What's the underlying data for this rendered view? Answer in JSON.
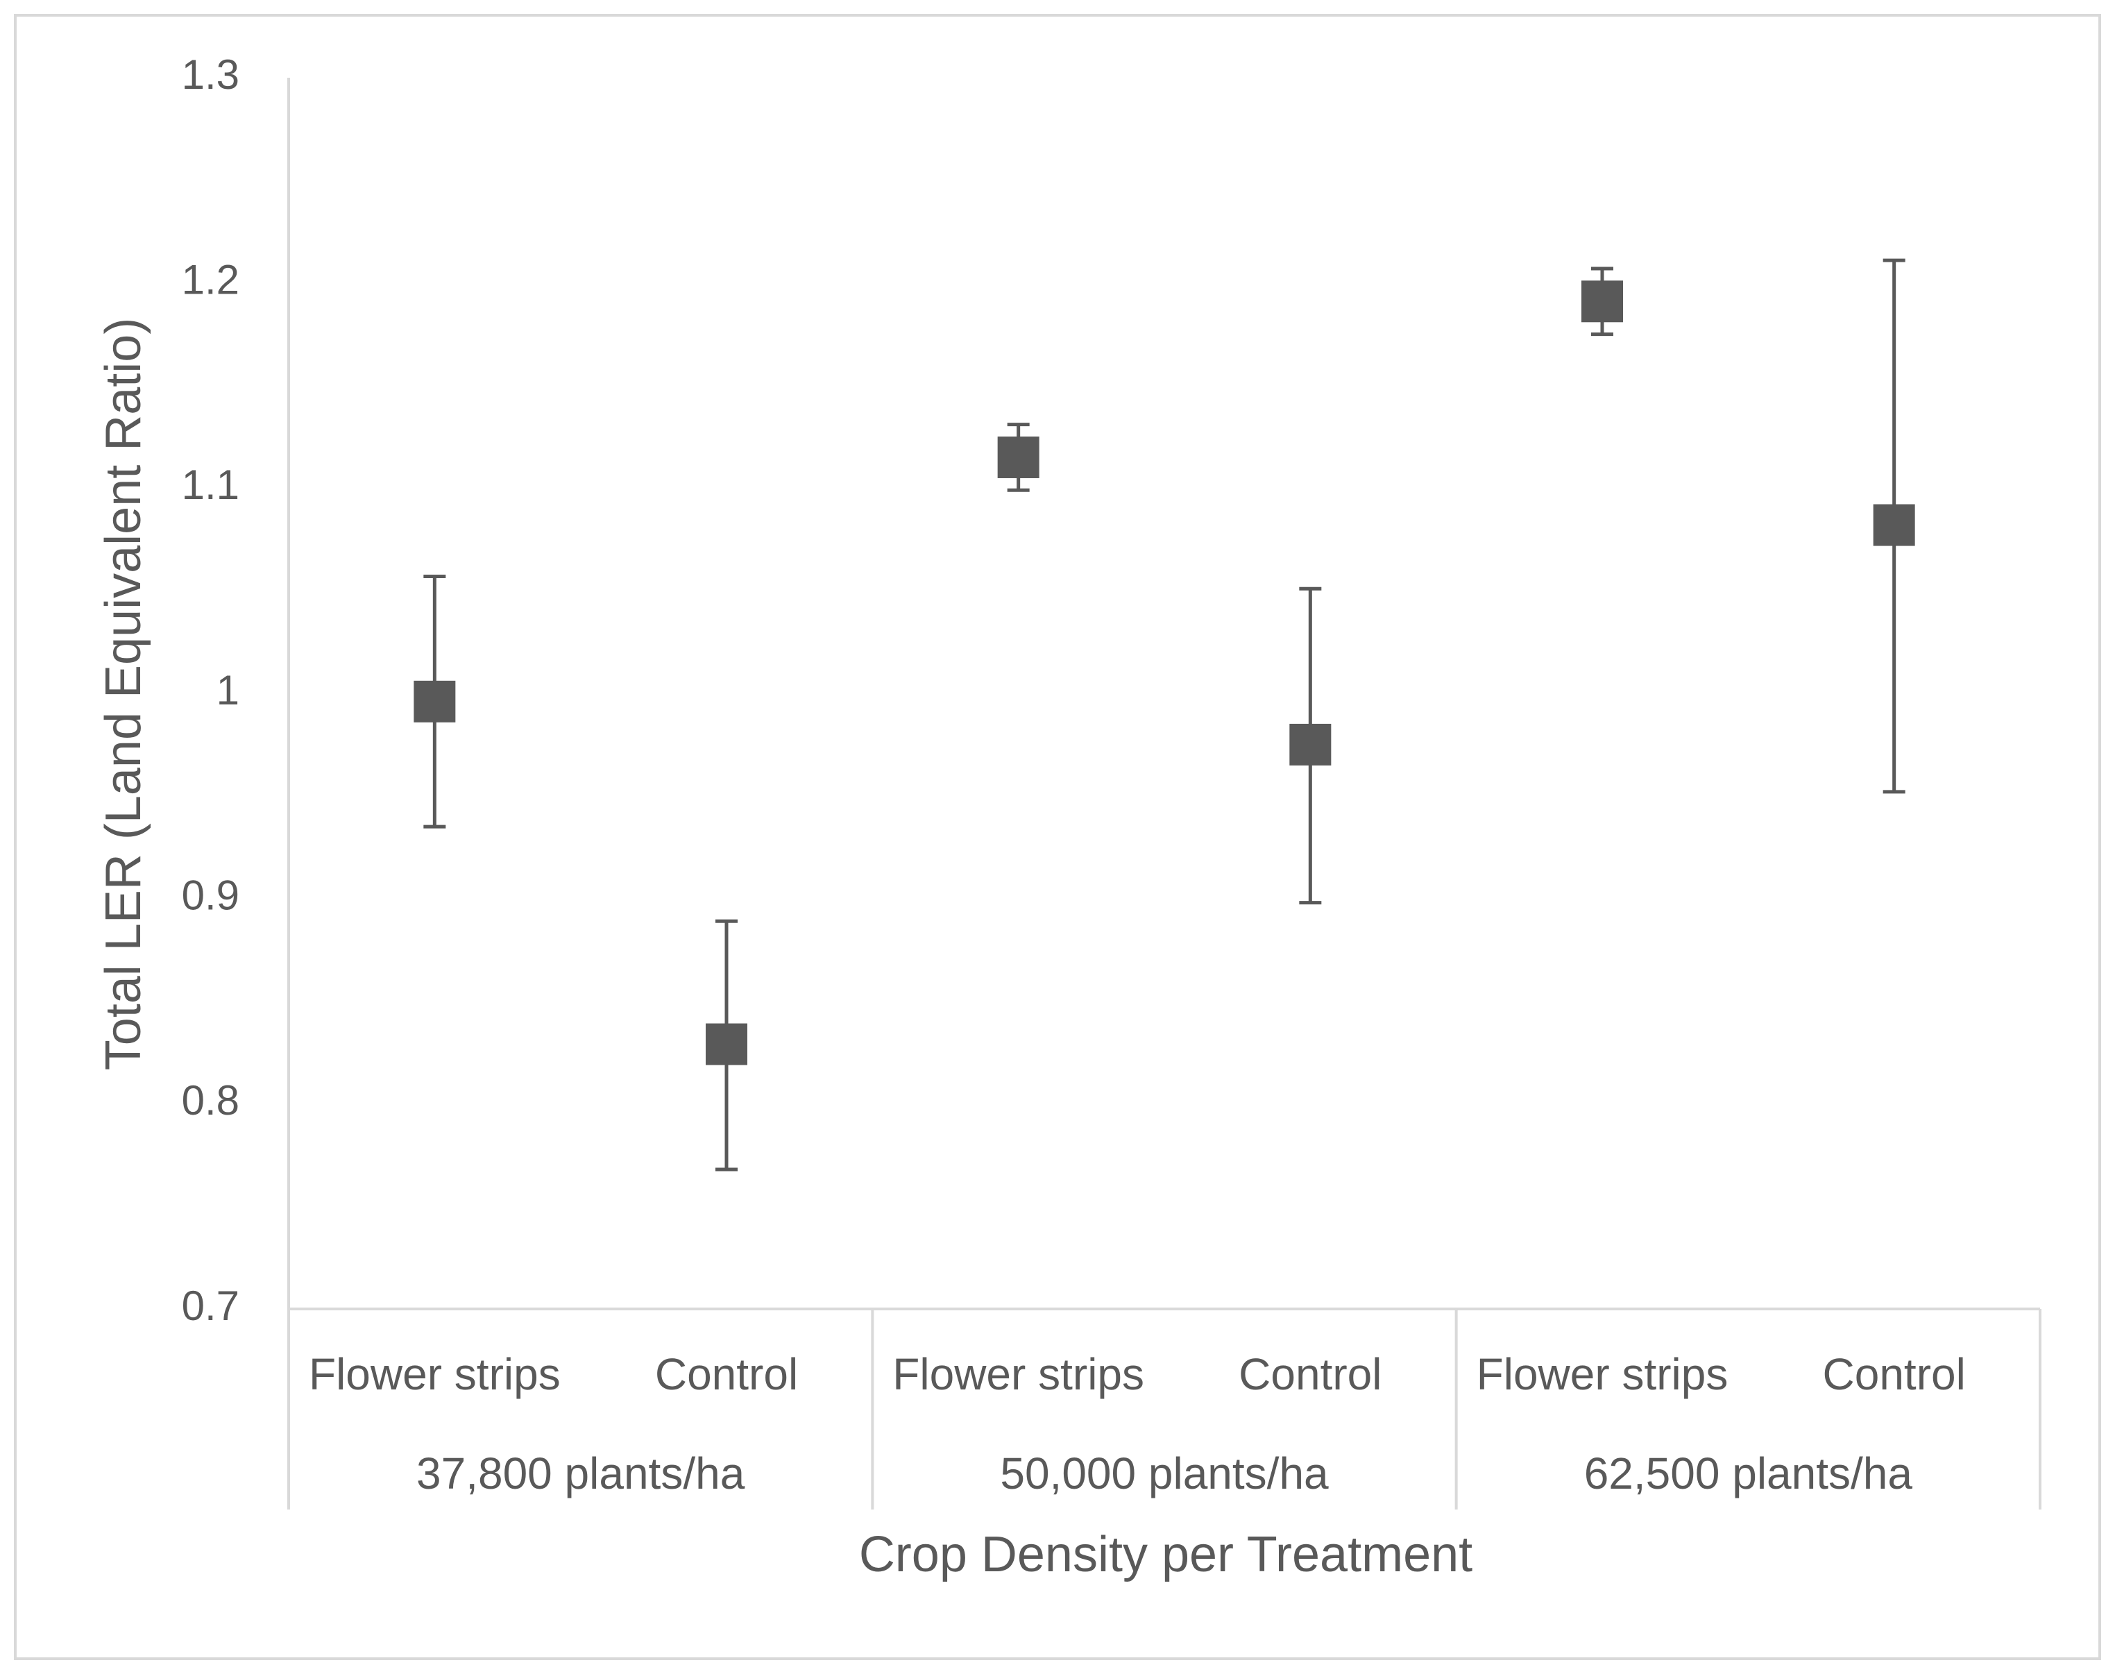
{
  "chart_data": {
    "type": "scatter",
    "title": "",
    "xlabel": "Crop Density per Treatment",
    "ylabel": "Total LER (Land Equivalent Ratio)",
    "ylim": [
      0.7,
      1.3
    ],
    "yticks": [
      0.7,
      0.8,
      0.9,
      1,
      1.1,
      1.2,
      1.3
    ],
    "ytick_labels": [
      "0.7",
      "0.8",
      "0.9",
      "1",
      "1.1",
      "1.2",
      "1.3"
    ],
    "grid": false,
    "legend": "none",
    "colors": {
      "marker": "#595959",
      "error_bar": "#595959",
      "axis": "#d9d9d9",
      "text": "#595959",
      "frame": "#d9d9d9"
    },
    "groups": [
      {
        "label": "37,800 plants/ha"
      },
      {
        "label": "50,000 plants/ha"
      },
      {
        "label": "62,500 plants/ha"
      }
    ],
    "points": [
      {
        "group": 0,
        "category": "Flower strips",
        "value": 0.996,
        "upper": 1.057,
        "lower": 0.935
      },
      {
        "group": 0,
        "category": "Control",
        "value": 0.829,
        "upper": 0.889,
        "lower": 0.768
      },
      {
        "group": 1,
        "category": "Flower strips",
        "value": 1.115,
        "upper": 1.131,
        "lower": 1.099
      },
      {
        "group": 1,
        "category": "Control",
        "value": 0.975,
        "upper": 1.051,
        "lower": 0.898
      },
      {
        "group": 2,
        "category": "Flower strips",
        "value": 1.191,
        "upper": 1.207,
        "lower": 1.175
      },
      {
        "group": 2,
        "category": "Control",
        "value": 1.082,
        "upper": 1.211,
        "lower": 0.952
      }
    ]
  }
}
